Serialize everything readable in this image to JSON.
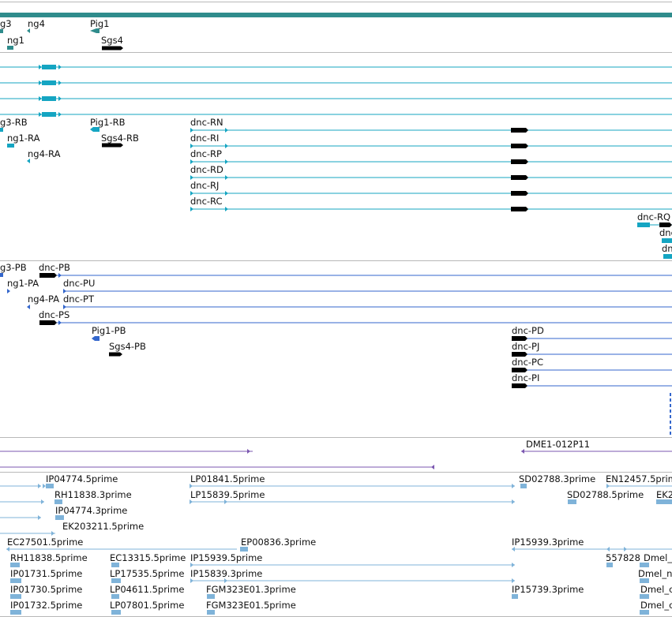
{
  "colors": {
    "gene": "#2f8c8c",
    "transcript": "#15a5c2",
    "protein": "#3366cc",
    "bac": "#7b57b0",
    "est": "#7fb3d9",
    "separator": "#b8b8b8",
    "text": "#111111"
  },
  "tracks": {
    "gene": {
      "labels": [
        {
          "id": "g-ng3",
          "text": "g3"
        },
        {
          "id": "g-ng4",
          "text": "ng4"
        },
        {
          "id": "g-pig1",
          "text": "Pig1"
        },
        {
          "id": "g-ng1",
          "text": "ng1"
        },
        {
          "id": "g-sgs4",
          "text": "Sgs4"
        }
      ]
    },
    "transcript": {
      "labels": [
        {
          "id": "t-ng3rb",
          "text": "g3-RB"
        },
        {
          "id": "t-pig1rb",
          "text": "Pig1-RB"
        },
        {
          "id": "t-dncrn",
          "text": "dnc-RN"
        },
        {
          "id": "t-ng1ra",
          "text": "ng1-RA"
        },
        {
          "id": "t-sgs4rb",
          "text": "Sgs4-RB"
        },
        {
          "id": "t-dncri",
          "text": "dnc-RI"
        },
        {
          "id": "t-ng4ra",
          "text": "ng4-RA"
        },
        {
          "id": "t-dncrp",
          "text": "dnc-RP"
        },
        {
          "id": "t-dncrd",
          "text": "dnc-RD"
        },
        {
          "id": "t-dncrj",
          "text": "dnc-RJ"
        },
        {
          "id": "t-dncrc",
          "text": "dnc-RC"
        },
        {
          "id": "t-dncrq",
          "text": "dnc-RQ"
        },
        {
          "id": "t-dnc2",
          "text": "dnc"
        },
        {
          "id": "t-dnc3",
          "text": "dn"
        }
      ]
    },
    "protein": {
      "labels": [
        {
          "id": "p-ng3pb",
          "text": "g3-PB"
        },
        {
          "id": "p-dncpb",
          "text": "dnc-PB"
        },
        {
          "id": "p-ng1pa",
          "text": "ng1-PA"
        },
        {
          "id": "p-dncpu",
          "text": "dnc-PU"
        },
        {
          "id": "p-ng4pa",
          "text": "ng4-PA"
        },
        {
          "id": "p-dncpt",
          "text": "dnc-PT"
        },
        {
          "id": "p-dncps",
          "text": "dnc-PS"
        },
        {
          "id": "p-pig1pb",
          "text": "Pig1-PB"
        },
        {
          "id": "p-dncpd",
          "text": "dnc-PD"
        },
        {
          "id": "p-sgs4pb",
          "text": "Sgs4-PB"
        },
        {
          "id": "p-dncpj",
          "text": "dnc-PJ"
        },
        {
          "id": "p-dncpc",
          "text": "dnc-PC"
        },
        {
          "id": "p-dncpi",
          "text": "dnc-PI"
        }
      ]
    },
    "bac": {
      "labels": [
        {
          "id": "b-dme1",
          "text": "DME1-012P11"
        }
      ]
    },
    "est": {
      "labels": [
        {
          "id": "e1",
          "text": "IP04774.5prime"
        },
        {
          "id": "e2",
          "text": "LP01841.5prime"
        },
        {
          "id": "e3",
          "text": "SD02788.3prime"
        },
        {
          "id": "e4",
          "text": "EN12457.5prime"
        },
        {
          "id": "e5",
          "text": "RH11838.3prime"
        },
        {
          "id": "e6",
          "text": "LP15839.5prime"
        },
        {
          "id": "e7",
          "text": "SD02788.5prime"
        },
        {
          "id": "e8",
          "text": "EK2"
        },
        {
          "id": "e9",
          "text": "IP04774.3prime"
        },
        {
          "id": "e10",
          "text": "EK203211.5prime"
        },
        {
          "id": "e11",
          "text": "EC27501.5prime"
        },
        {
          "id": "e12",
          "text": "EP00836.3prime"
        },
        {
          "id": "e13",
          "text": "IP15939.3prime"
        },
        {
          "id": "e14",
          "text": "RH11838.5prime"
        },
        {
          "id": "e15",
          "text": "EC13315.5prime"
        },
        {
          "id": "e16",
          "text": "IP15939.5prime"
        },
        {
          "id": "e17",
          "text": "557828"
        },
        {
          "id": "e18",
          "text": "Dmel_"
        },
        {
          "id": "e19",
          "text": "IP01731.5prime"
        },
        {
          "id": "e20",
          "text": "LP17535.5prime"
        },
        {
          "id": "e21",
          "text": "IP15839.3prime"
        },
        {
          "id": "e22",
          "text": "Dmel_n"
        },
        {
          "id": "e23",
          "text": "IP01730.5prime"
        },
        {
          "id": "e24",
          "text": "LP04611.5prime"
        },
        {
          "id": "e25",
          "text": "FGM323E01.3prime"
        },
        {
          "id": "e26",
          "text": "IP15739.3prime"
        },
        {
          "id": "e27",
          "text": "Dmel_c"
        },
        {
          "id": "e28",
          "text": "IP01732.5prime"
        },
        {
          "id": "e29",
          "text": "LP07801.5prime"
        },
        {
          "id": "e30",
          "text": "FGM323E01.5prime"
        },
        {
          "id": "e31",
          "text": "Dmel_c"
        }
      ]
    }
  }
}
